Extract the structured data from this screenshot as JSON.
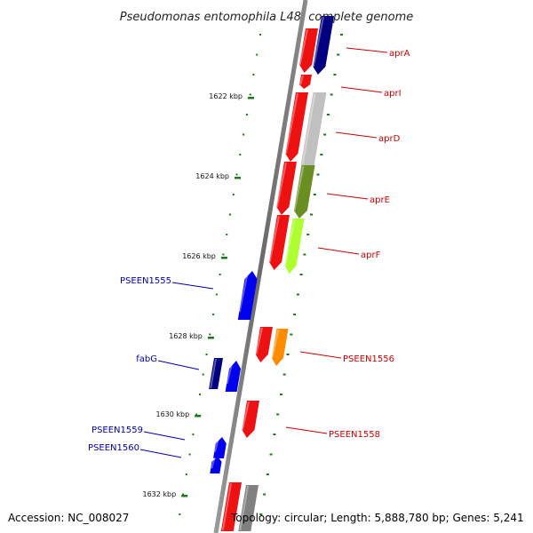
{
  "title": "Pseudomonas entomophila L48, complete genome",
  "footer": {
    "accession": "Accession: NC_008027",
    "topology": "Topology: circular; Length: 5,888,780 bp; Genes: 5,241"
  },
  "tick_labels": [
    "1622 kbp",
    "1624 kbp",
    "1626 kbp",
    "1628 kbp",
    "1630 kbp",
    "1632 kbp"
  ],
  "gene_labels": {
    "right": [
      "aprA",
      "aprI",
      "aprD",
      "aprE",
      "aprF",
      "PSEEN1556",
      "PSEEN1558"
    ],
    "left": [
      "PSEEN1555",
      "fabG",
      "PSEEN1559",
      "PSEEN1560"
    ]
  },
  "colors": {
    "red": "#ee1111",
    "navy": "#000080",
    "silver": "#c0c0c0",
    "olive": "#6b8e23",
    "lime": "#adff2f",
    "orange": "#ff8c00",
    "blue": "#0000ee",
    "gray": "#808080",
    "tick_green": "#1a7a1a"
  }
}
